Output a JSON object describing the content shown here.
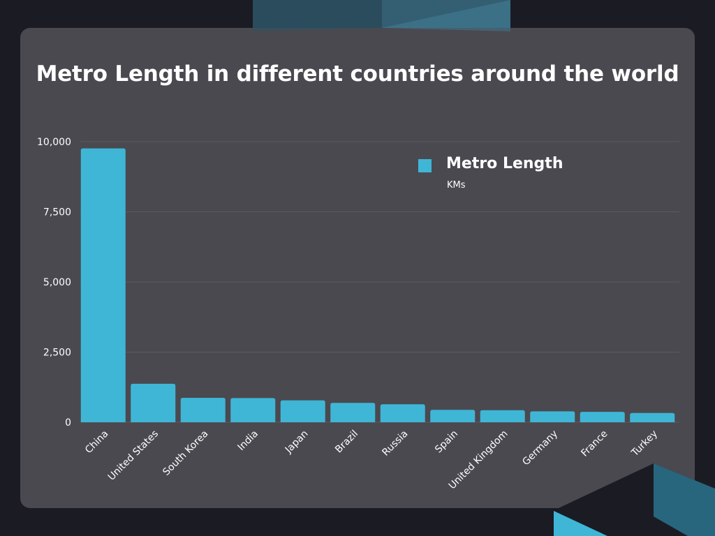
{
  "title": "Metro Length in different countries around the world",
  "colors": {
    "background": "#1b1b24",
    "card": "#4a4950",
    "bar": "#3fb6d6",
    "gridline": "#5c5b62",
    "text": "#ffffff"
  },
  "legend": {
    "name": "Metro Length",
    "unit": "KMs"
  },
  "chart_data": {
    "type": "bar",
    "categories": [
      "China",
      "United States",
      "South Korea",
      "India",
      "Japan",
      "Brazil",
      "Russia",
      "Spain",
      "United Kingdom",
      "Germany",
      "France",
      "Turkey"
    ],
    "series": [
      {
        "name": "Metro Length",
        "values": [
          9760,
          1370,
          870,
          860,
          780,
          690,
          640,
          440,
          430,
          390,
          370,
          330
        ]
      }
    ],
    "ylim": [
      0,
      10000
    ],
    "yticks": [
      0,
      2500,
      5000,
      7500,
      10000
    ],
    "ytick_labels": [
      "0",
      "2,500",
      "5,000",
      "7,500",
      "10,000"
    ],
    "xlabel": "",
    "ylabel": "",
    "grid": true,
    "legend_position": "top-right"
  }
}
